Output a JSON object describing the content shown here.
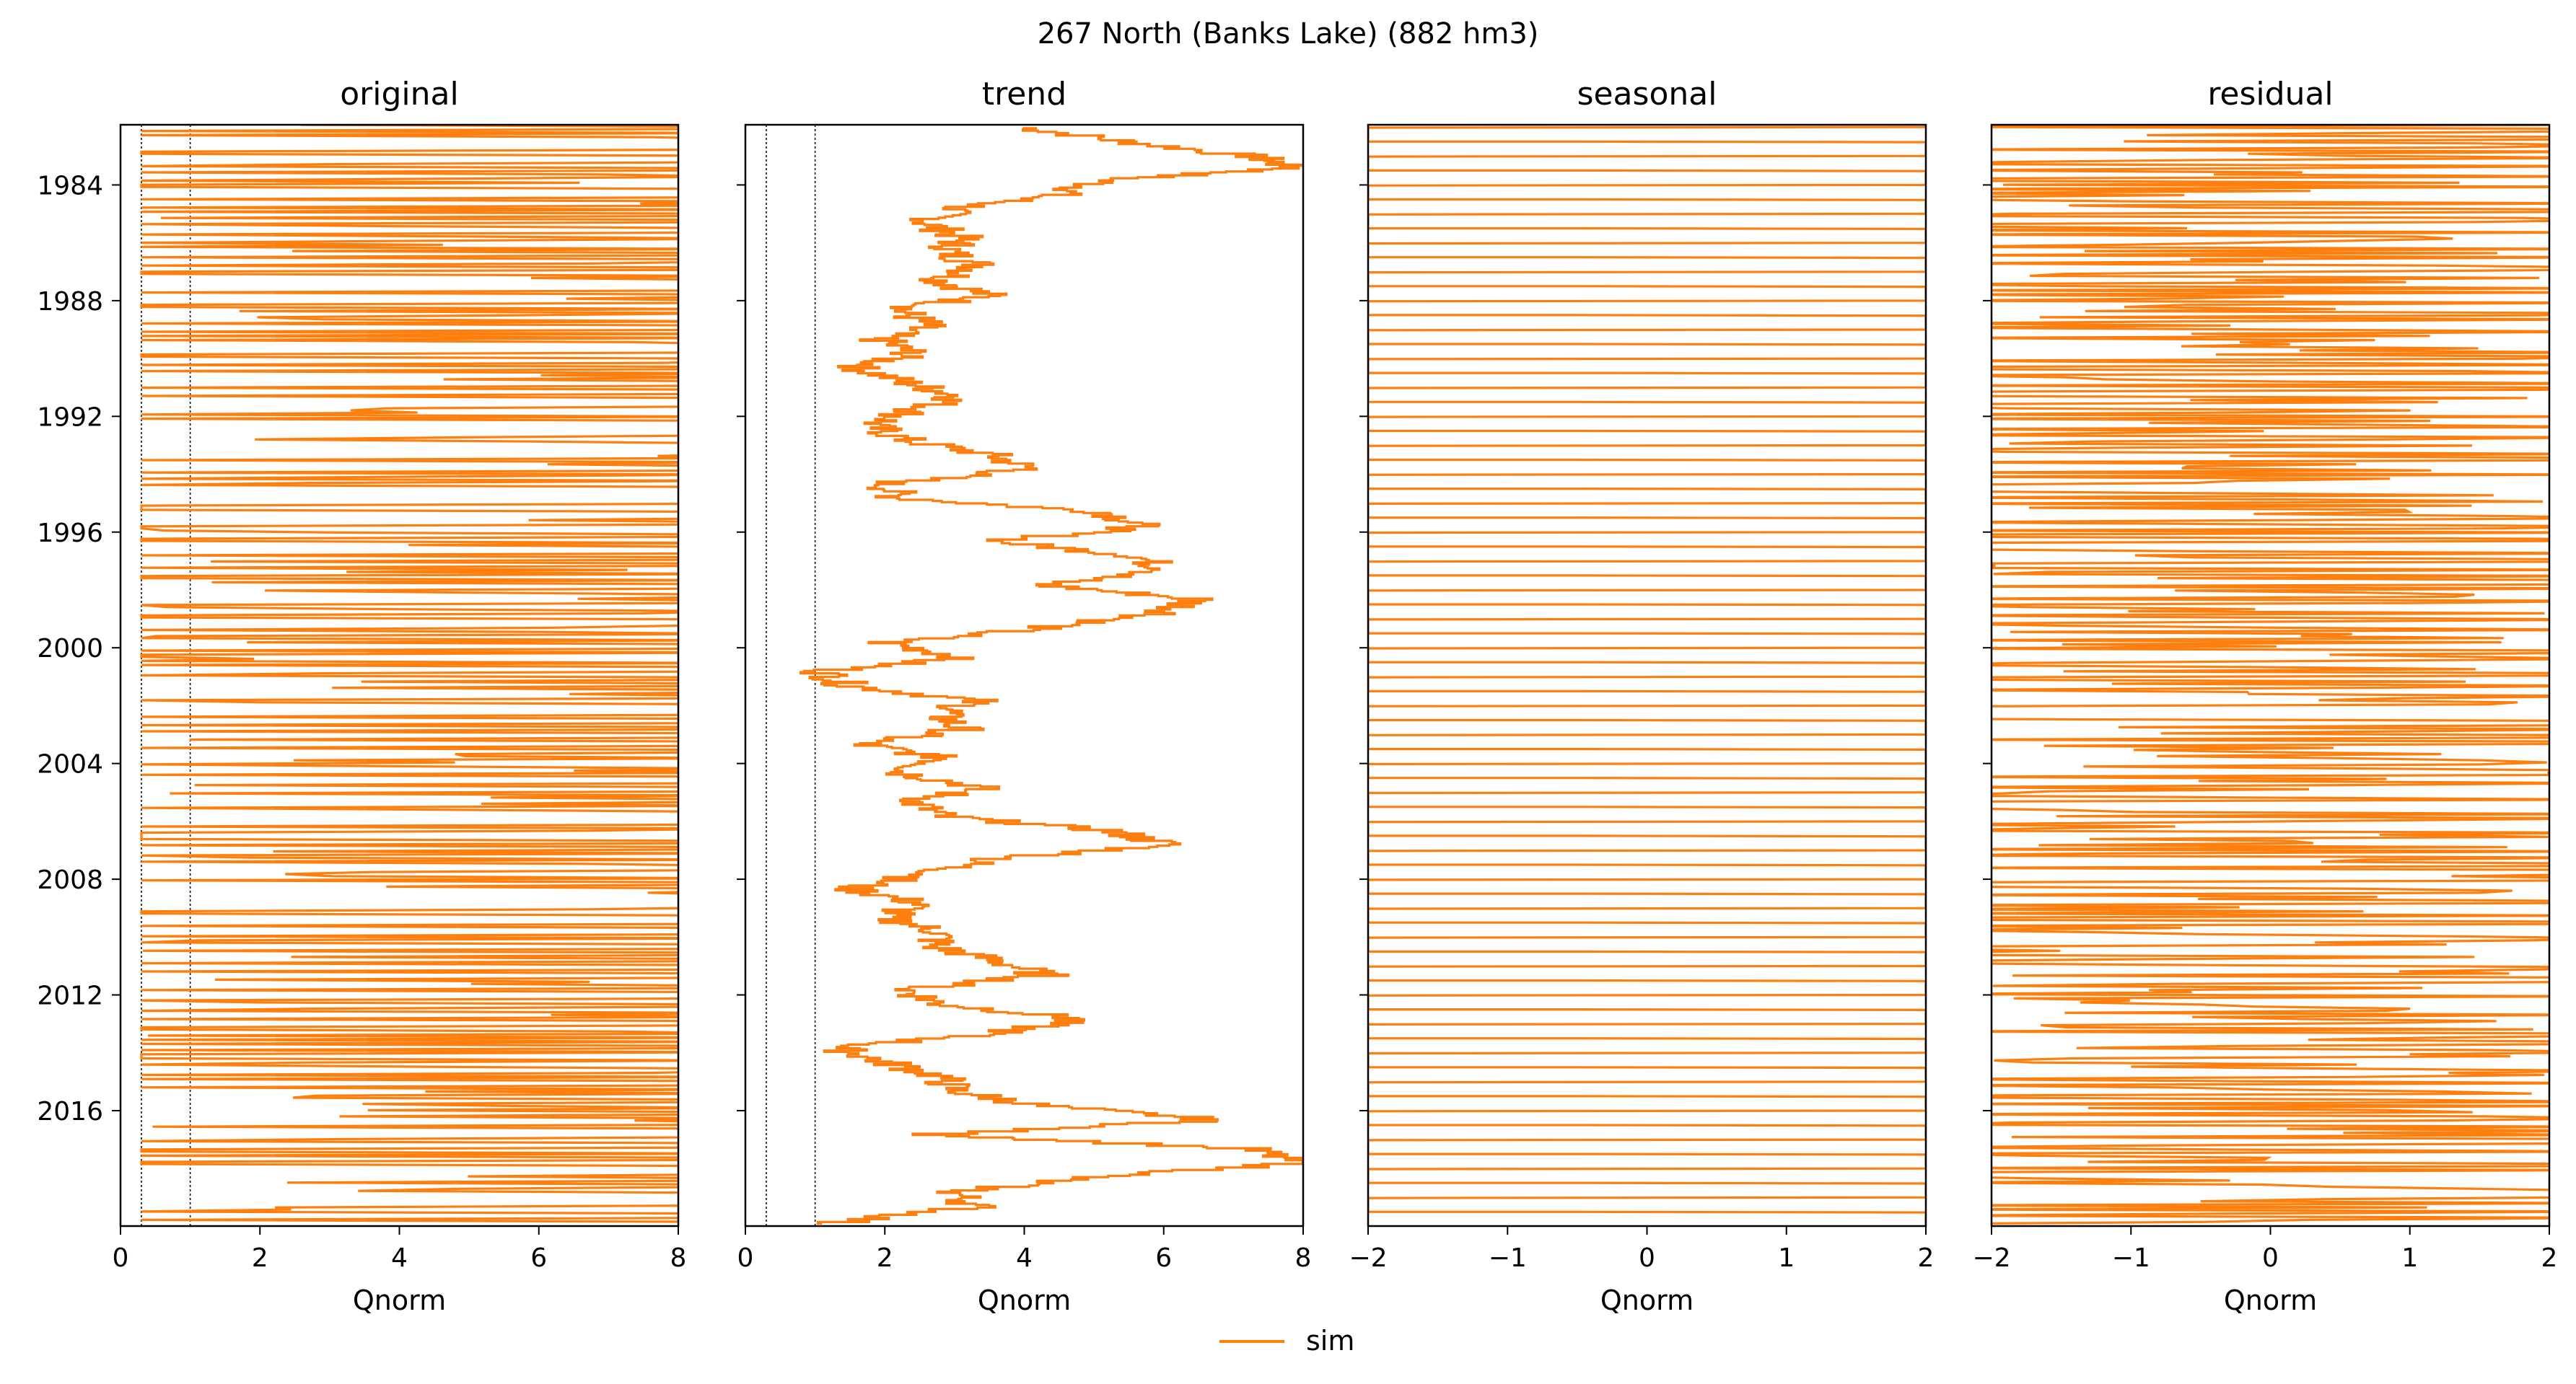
{
  "figure": {
    "title": "267  North (Banks Lake) (882 hm3)",
    "legend": {
      "label": "sim",
      "color": "#ff7f0e",
      "placement": "bottom-center"
    },
    "y_axis": {
      "type": "date",
      "range": [
        "1981-12-01",
        "2019-12-31"
      ],
      "tick_labels": [
        "1984",
        "1988",
        "1992",
        "1996",
        "2000",
        "2004",
        "2008",
        "2012",
        "2016"
      ]
    },
    "line_color": "#ff7f0e"
  },
  "chart_data": [
    {
      "type": "line",
      "title": "original",
      "xlabel": "Qnorm",
      "xlim": [
        0,
        8
      ],
      "x_ticks": [
        "0",
        "2",
        "4",
        "6",
        "8"
      ],
      "reference_lines_x": [
        0,
        0.3,
        1
      ],
      "series": [
        {
          "name": "sim",
          "description_values": "dense monthly Qnorm oscillating between about 0.3 and 8 (clipped)"
        }
      ],
      "approx_values": {
        "low": 0.3,
        "high": 8
      }
    },
    {
      "type": "line",
      "title": "trend",
      "xlabel": "Qnorm",
      "xlim": [
        0,
        8
      ],
      "x_ticks": [
        "0",
        "2",
        "4",
        "6",
        "8"
      ],
      "reference_lines_x": [
        0,
        0.3,
        1
      ],
      "series": [
        {
          "name": "sim",
          "points": [
            [
              "1982.0",
              4.0
            ],
            [
              "1982.5",
              5.5
            ],
            [
              "1983.0",
              7.3
            ],
            [
              "1983.4",
              7.9
            ],
            [
              "1983.8",
              5.2
            ],
            [
              "1984.3",
              4.5
            ],
            [
              "1984.8",
              3.0
            ],
            [
              "1985.3",
              2.6
            ],
            [
              "1985.8",
              3.1
            ],
            [
              "1986.3",
              2.9
            ],
            [
              "1986.8",
              3.4
            ],
            [
              "1987.3",
              2.8
            ],
            [
              "1987.8",
              3.5
            ],
            [
              "1988.3",
              2.2
            ],
            [
              "1988.8",
              2.6
            ],
            [
              "1989.3",
              1.9
            ],
            [
              "1989.8",
              2.4
            ],
            [
              "1990.3",
              1.6
            ],
            [
              "1990.8",
              2.3
            ],
            [
              "1991.3",
              3.1
            ],
            [
              "1991.8",
              2.4
            ],
            [
              "1992.3",
              1.8
            ],
            [
              "1992.8",
              2.3
            ],
            [
              "1993.3",
              3.5
            ],
            [
              "1993.8",
              4.1
            ],
            [
              "1994.3",
              2.0
            ],
            [
              "1994.8",
              2.2
            ],
            [
              "1995.3",
              5.2
            ],
            [
              "1995.8",
              5.7
            ],
            [
              "1996.3",
              3.6
            ],
            [
              "1996.8",
              5.6
            ],
            [
              "1997.3",
              6.1
            ],
            [
              "1997.8",
              4.2
            ],
            [
              "1998.3",
              6.5
            ],
            [
              "1998.8",
              6.0
            ],
            [
              "1999.3",
              4.2
            ],
            [
              "1999.8",
              2.0
            ],
            [
              "2000.3",
              3.1
            ],
            [
              "2000.8",
              1.1
            ],
            [
              "2001.3",
              1.5
            ],
            [
              "2001.8",
              3.3
            ],
            [
              "2002.3",
              2.8
            ],
            [
              "2002.8",
              3.1
            ],
            [
              "2003.3",
              1.6
            ],
            [
              "2003.8",
              2.9
            ],
            [
              "2004.3",
              2.2
            ],
            [
              "2004.8",
              3.4
            ],
            [
              "2005.3",
              2.4
            ],
            [
              "2005.8",
              2.8
            ],
            [
              "2006.3",
              5.2
            ],
            [
              "2006.8",
              6.1
            ],
            [
              "2007.3",
              3.5
            ],
            [
              "2007.8",
              2.6
            ],
            [
              "2008.3",
              1.5
            ],
            [
              "2008.8",
              2.5
            ],
            [
              "2009.3",
              2.0
            ],
            [
              "2009.8",
              2.8
            ],
            [
              "2010.3",
              2.7
            ],
            [
              "2010.8",
              3.6
            ],
            [
              "2011.3",
              4.3
            ],
            [
              "2011.8",
              2.3
            ],
            [
              "2012.3",
              2.8
            ],
            [
              "2012.8",
              4.8
            ],
            [
              "2013.3",
              3.6
            ],
            [
              "2013.8",
              1.3
            ],
            [
              "2014.3",
              2.0
            ],
            [
              "2014.8",
              2.8
            ],
            [
              "2015.3",
              3.0
            ],
            [
              "2015.8",
              4.2
            ],
            [
              "2016.3",
              6.8
            ],
            [
              "2016.8",
              2.7
            ],
            [
              "2017.3",
              7.2
            ],
            [
              "2017.8",
              8.0
            ],
            [
              "2018.3",
              4.8
            ],
            [
              "2018.8",
              3.0
            ],
            [
              "2019.3",
              3.3
            ],
            [
              "2019.9",
              1.1
            ]
          ]
        }
      ]
    },
    {
      "type": "line",
      "title": "seasonal",
      "xlabel": "Qnorm",
      "xlim": [
        -2,
        2
      ],
      "x_ticks": [
        "−2",
        "−1",
        "0",
        "1",
        "2"
      ],
      "series": [
        {
          "name": "sim",
          "description_values": "regular annual oscillation between about -2 and 2"
        }
      ],
      "approx_values": {
        "low": -2,
        "high": 2,
        "period_years": 1
      }
    },
    {
      "type": "line",
      "title": "residual",
      "xlabel": "Qnorm",
      "xlim": [
        -2,
        2
      ],
      "x_ticks": [
        "−2",
        "−1",
        "0",
        "1",
        "2"
      ],
      "series": [
        {
          "name": "sim",
          "description_values": "dense irregular residual oscillating across -2 to 2"
        }
      ],
      "approx_values": {
        "low": -2,
        "high": 2
      }
    }
  ]
}
